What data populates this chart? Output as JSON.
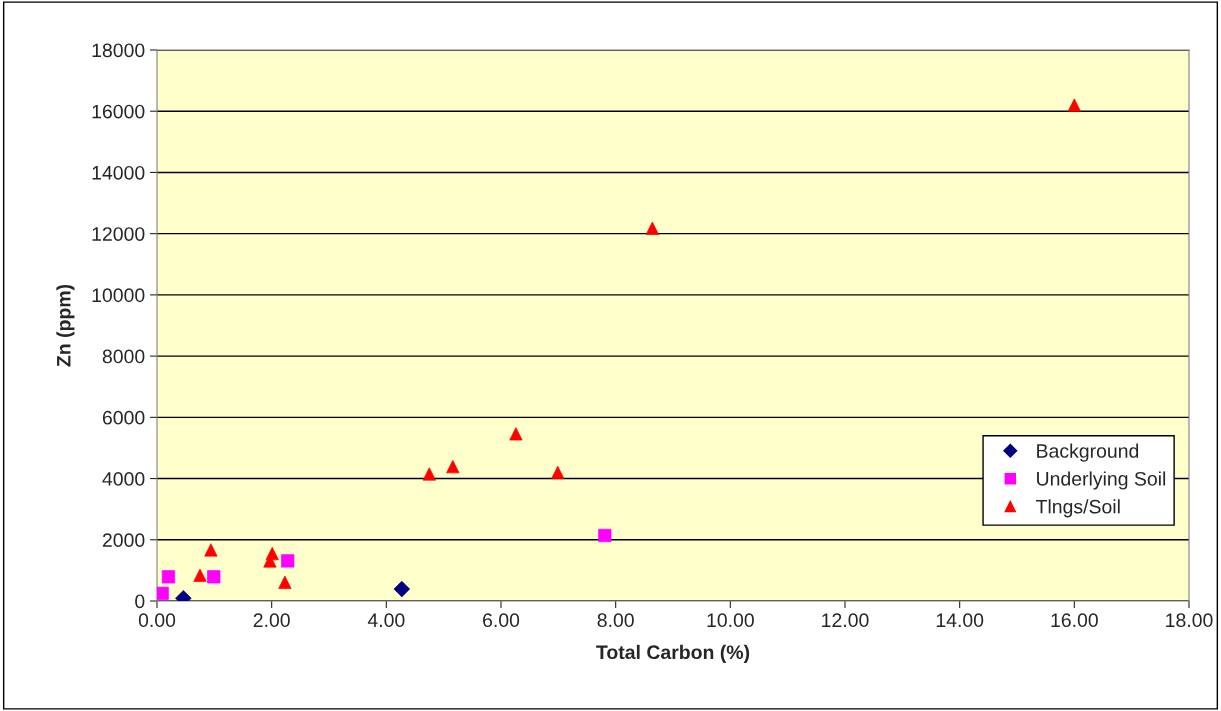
{
  "chart_data": {
    "type": "scatter",
    "xlabel": "Total Carbon (%)",
    "ylabel": "Zn (ppm)",
    "xlim": [
      0,
      18
    ],
    "ylim": [
      0,
      18000
    ],
    "xticks": [
      {
        "value": 0,
        "label": "0.00"
      },
      {
        "value": 2,
        "label": "2.00"
      },
      {
        "value": 4,
        "label": "4.00"
      },
      {
        "value": 6,
        "label": "6.00"
      },
      {
        "value": 8,
        "label": "8.00"
      },
      {
        "value": 10,
        "label": "10.00"
      },
      {
        "value": 12,
        "label": "12.00"
      },
      {
        "value": 14,
        "label": "14.00"
      },
      {
        "value": 16,
        "label": "16.00"
      },
      {
        "value": 18,
        "label": "18.00"
      }
    ],
    "yticks": [
      0,
      2000,
      4000,
      6000,
      8000,
      10000,
      12000,
      14000,
      16000,
      18000
    ],
    "grid": "y",
    "legend": "right",
    "series": [
      {
        "name": "Background",
        "color": "#000080",
        "marker": "diamond",
        "x": [
          0.46,
          4.27
        ],
        "values": [
          90,
          390
        ]
      },
      {
        "name": "Underlying Soil",
        "color": "#ff00ff",
        "marker": "square",
        "x": [
          0.09,
          0.2,
          0.99,
          2.28,
          7.81
        ],
        "values": [
          250,
          790,
          790,
          1310,
          2140
        ]
      },
      {
        "name": "Tlngs/Soil",
        "color": "#ff0000",
        "marker": "triangle",
        "x": [
          0.75,
          0.94,
          1.97,
          2.01,
          2.23,
          4.75,
          5.16,
          6.26,
          6.99,
          8.64,
          16.0
        ],
        "values": [
          840,
          1670,
          1310,
          1550,
          610,
          4150,
          4390,
          5460,
          4200,
          12180,
          16200
        ]
      }
    ]
  }
}
